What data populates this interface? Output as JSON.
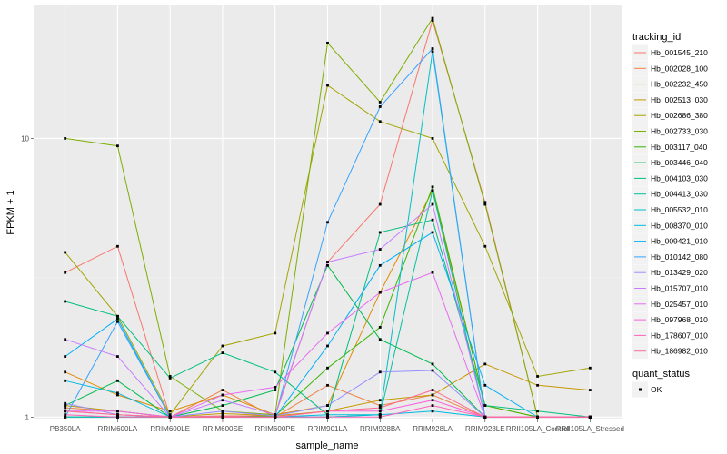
{
  "chart_data": {
    "type": "line",
    "xlabel": "sample_name",
    "ylabel": "FPKM + 1",
    "y_scale": "log10",
    "ylim": [
      0.98,
      30
    ],
    "y_ticks": [
      {
        "value": 1,
        "label": "1"
      },
      {
        "value": 10,
        "label": "10"
      }
    ],
    "categories": [
      "PB350LA",
      "RRIM600LA",
      "RRIM600LE",
      "RRIM600SE",
      "RRIM600PE",
      "RRIM901LA",
      "RRIM928BA",
      "RRIM928LA",
      "RRIM928LE",
      "RRII105LA_Control",
      "RRII105LA_Stressed"
    ],
    "category_labels": [
      "PB350LA",
      "RRIM600LA",
      "RRIM600LE",
      "RRIM600SE",
      "RRIM600PE",
      "RRIM901LA",
      "RRIM928BA",
      "RRIM928LA",
      "RRIM928LE",
      "RRII105LA_Control",
      "RRII105LA_Stressed"
    ],
    "grid": true,
    "legend": {
      "title": "tracking_id",
      "position": "right",
      "shape_title": "quant_status",
      "shape_entries": [
        "OK"
      ]
    },
    "series": [
      {
        "name": "Hb_001545_210",
        "color": "#F8766D",
        "values": [
          3.3,
          4.1,
          1.0,
          1.01,
          1.01,
          3.6,
          5.8,
          26.5,
          5.9,
          1.0,
          1.0
        ]
      },
      {
        "name": "Hb_002028_100",
        "color": "#EE8044",
        "values": [
          1.08,
          1.05,
          1.0,
          1.25,
          1.0,
          1.3,
          1.1,
          1.2,
          1.0,
          1.0,
          1.0
        ]
      },
      {
        "name": "Hb_002232_450",
        "color": "#DE8C00",
        "values": [
          1.45,
          1.2,
          1.05,
          1.2,
          1.02,
          1.1,
          2.8,
          6.5,
          1.1,
          1.0,
          1.0
        ]
      },
      {
        "name": "Hb_002513_030",
        "color": "#C59900",
        "values": [
          1.1,
          1.05,
          1.0,
          1.03,
          1.01,
          1.05,
          1.15,
          1.2,
          1.55,
          1.3,
          1.25
        ]
      },
      {
        "name": "Hb_002686_380",
        "color": "#A3A500",
        "values": [
          3.9,
          2.3,
          1.02,
          1.8,
          2.0,
          15.5,
          11.5,
          10.0,
          4.1,
          1.4,
          1.5
        ]
      },
      {
        "name": "Hb_002733_030",
        "color": "#7CAE00",
        "values": [
          10.0,
          9.4,
          1.4,
          1.05,
          1.02,
          22.0,
          13.5,
          27.0,
          5.8,
          1.0,
          1.0
        ]
      },
      {
        "name": "Hb_003117_040",
        "color": "#39B600",
        "values": [
          1.0,
          1.0,
          1.0,
          1.0,
          1.01,
          1.5,
          2.1,
          6.7,
          1.1,
          1.0,
          1.0
        ]
      },
      {
        "name": "Hb_003446_040",
        "color": "#00BB4E",
        "values": [
          1.1,
          1.35,
          1.0,
          1.1,
          1.25,
          3.5,
          1.9,
          1.55,
          1.0,
          1.0,
          1.0
        ]
      },
      {
        "name": "Hb_004103_030",
        "color": "#00BF7D",
        "values": [
          2.6,
          2.3,
          1.38,
          1.7,
          1.45,
          1.02,
          4.6,
          5.1,
          1.1,
          1.05,
          1.0
        ]
      },
      {
        "name": "Hb_004413_030",
        "color": "#00C1A3",
        "values": [
          1.0,
          1.0,
          1.0,
          1.0,
          1.0,
          1.0,
          1.02,
          6.5,
          1.0,
          1.0,
          1.0
        ]
      },
      {
        "name": "Hb_005532_010",
        "color": "#00BFC4",
        "values": [
          1.0,
          1.0,
          1.0,
          1.0,
          1.0,
          1.0,
          1.02,
          20.5,
          1.0,
          1.0,
          1.0
        ]
      },
      {
        "name": "Hb_008370_010",
        "color": "#00BAE0",
        "values": [
          1.35,
          1.22,
          1.0,
          1.0,
          1.0,
          1.02,
          1.02,
          1.05,
          1.0,
          1.0,
          1.0
        ]
      },
      {
        "name": "Hb_009421_010",
        "color": "#00B0F6",
        "values": [
          1.65,
          2.25,
          1.0,
          1.0,
          1.0,
          1.8,
          3.5,
          4.6,
          1.3,
          1.0,
          1.0
        ]
      },
      {
        "name": "Hb_010142_080",
        "color": "#35A2FF",
        "values": [
          1.0,
          2.2,
          1.0,
          1.0,
          1.0,
          5.0,
          13.0,
          21.0,
          1.0,
          1.0,
          1.0
        ]
      },
      {
        "name": "Hb_013429_020",
        "color": "#9590FF",
        "values": [
          1.12,
          1.02,
          1.0,
          1.05,
          1.01,
          1.1,
          1.45,
          1.47,
          1.0,
          1.0,
          1.0
        ]
      },
      {
        "name": "Hb_015707_010",
        "color": "#C77CFF",
        "values": [
          1.9,
          1.65,
          1.0,
          1.15,
          1.02,
          3.6,
          4.0,
          5.8,
          1.0,
          1.0,
          1.0
        ]
      },
      {
        "name": "Hb_025457_010",
        "color": "#E76BF3",
        "values": [
          1.05,
          1.05,
          1.0,
          1.2,
          1.28,
          2.0,
          2.8,
          3.3,
          1.0,
          1.0,
          1.0
        ]
      },
      {
        "name": "Hb_097968_010",
        "color": "#FA62DB",
        "values": [
          1.05,
          1.02,
          1.0,
          1.0,
          1.0,
          1.05,
          1.05,
          1.15,
          1.0,
          1.0,
          1.0
        ]
      },
      {
        "name": "Hb_178607_010",
        "color": "#FF62BC",
        "values": [
          1.02,
          1.0,
          1.0,
          1.0,
          1.0,
          1.0,
          1.0,
          1.1,
          1.0,
          1.0,
          1.0
        ]
      },
      {
        "name": "Hb_186982_010",
        "color": "#FF6C91",
        "values": [
          1.05,
          1.02,
          1.0,
          1.0,
          1.0,
          1.05,
          1.08,
          1.25,
          1.0,
          1.0,
          1.0
        ]
      }
    ]
  }
}
